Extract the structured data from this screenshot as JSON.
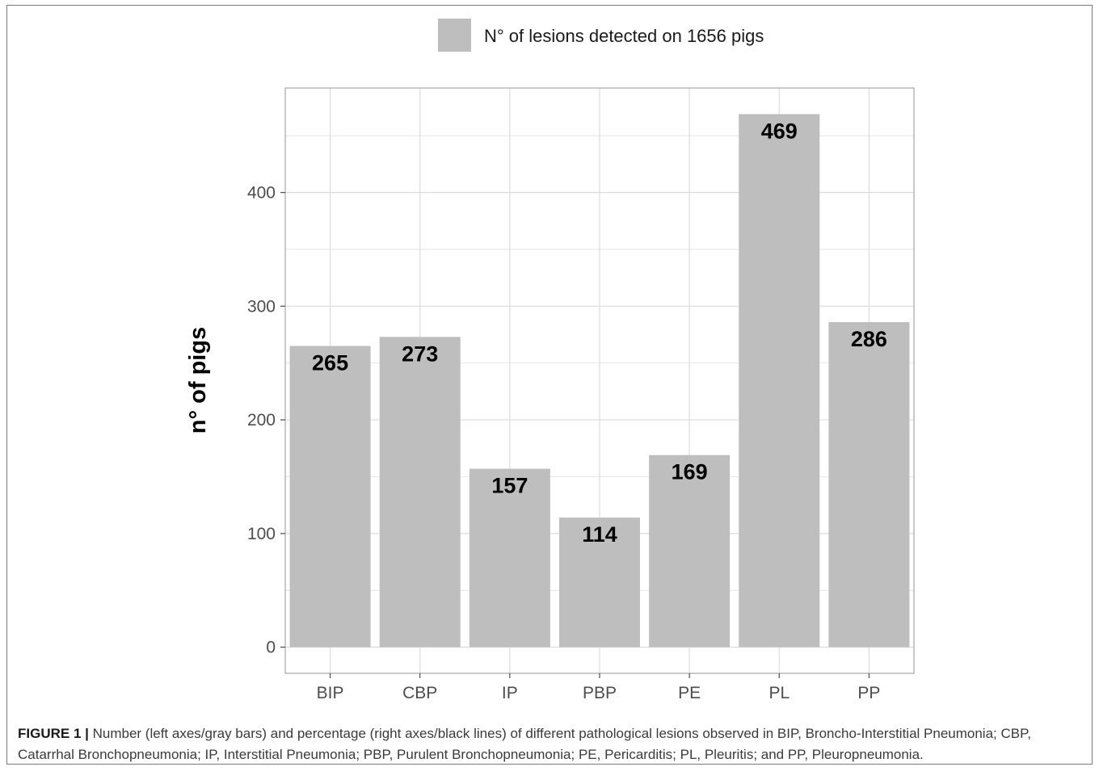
{
  "chart_data": {
    "type": "bar",
    "categories": [
      "BIP",
      "CBP",
      "IP",
      "PBP",
      "PE",
      "PL",
      "PP"
    ],
    "values": [
      265,
      273,
      157,
      114,
      169,
      469,
      286
    ],
    "data_labels": [
      "265",
      "273",
      "157",
      "114",
      "169",
      "469",
      "286"
    ],
    "legend": "N° of lesions detected on 1656 pigs",
    "ylabel": "n° of pigs",
    "xlabel": "",
    "yticks": [
      0,
      100,
      200,
      300,
      400
    ],
    "ylim": [
      -23,
      492
    ],
    "grid": true,
    "legend_position": "top",
    "colors": {
      "bar": "#bebebe",
      "grid": "#dcdcdc",
      "panel_border": "#a6a6a6"
    }
  },
  "caption": {
    "label": "FIGURE 1 |",
    "text": "Number (left axes/gray bars) and percentage (right axes/black lines) of different pathological lesions observed in BIP, Broncho-Interstitial Pneumonia; CBP, Catarrhal Bronchopneumonia; IP, Interstitial Pneumonia; PBP, Purulent Bronchopneumonia; PE, Pericarditis; PL, Pleuritis; and PP, Pleuropneumonia."
  }
}
